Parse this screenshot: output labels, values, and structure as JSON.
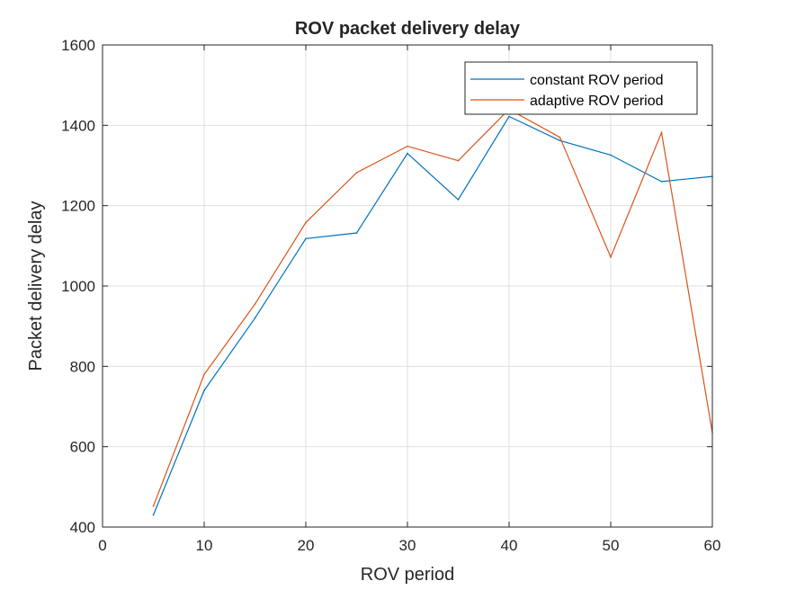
{
  "chart_data": {
    "type": "line",
    "title": "ROV packet delivery delay",
    "xlabel": "ROV period",
    "ylabel": "Packet delivery delay",
    "xlim": [
      0,
      60
    ],
    "ylim": [
      400,
      1600
    ],
    "xticks": [
      0,
      10,
      20,
      30,
      40,
      50,
      60
    ],
    "yticks": [
      400,
      600,
      800,
      1000,
      1200,
      1400,
      1600
    ],
    "grid": true,
    "legend_position": "top-right",
    "x": [
      5,
      10,
      15,
      20,
      25,
      30,
      35,
      40,
      45,
      50,
      55,
      60
    ],
    "series": [
      {
        "name": "constant ROV period",
        "color": "#0072BD",
        "values": [
          430,
          740,
          920,
          1118,
          1132,
          1330,
          1215,
          1422,
          1362,
          1326,
          1260,
          1273
        ]
      },
      {
        "name": "adaptive ROV period",
        "color": "#D95319",
        "values": [
          452,
          780,
          955,
          1158,
          1282,
          1348,
          1312,
          1440,
          1370,
          1072,
          1382,
          635
        ]
      }
    ]
  }
}
